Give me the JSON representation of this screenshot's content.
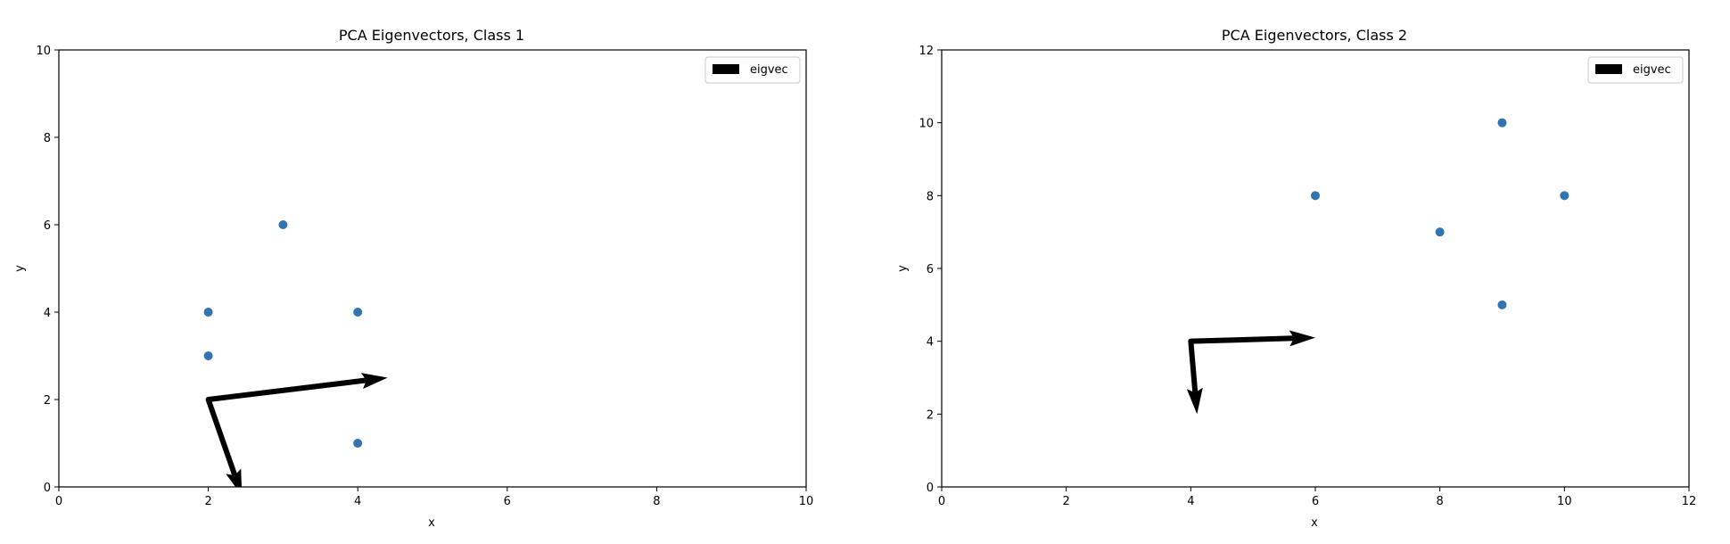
{
  "chart_data": [
    {
      "type": "scatter",
      "title": "PCA Eigenvectors, Class 1",
      "xlabel": "x",
      "ylabel": "y",
      "xlim": [
        0,
        10
      ],
      "ylim": [
        0,
        10
      ],
      "xticks": [
        0,
        2,
        4,
        6,
        8,
        10
      ],
      "yticks": [
        0,
        2,
        4,
        6,
        8,
        10
      ],
      "points": {
        "x": [
          2,
          3,
          2,
          4,
          4
        ],
        "y": [
          4,
          6,
          3,
          4,
          1
        ],
        "color": "#3274b0"
      },
      "eigenvectors": [
        {
          "from": [
            2,
            2
          ],
          "to": [
            4.4,
            2.5
          ]
        },
        {
          "from": [
            2,
            2
          ],
          "to": [
            2.45,
            -0.2
          ]
        }
      ],
      "legend": {
        "label": "eigvec",
        "location": "top-right"
      }
    },
    {
      "type": "scatter",
      "title": "PCA Eigenvectors, Class 2",
      "xlabel": "x",
      "ylabel": "y",
      "xlim": [
        0,
        12
      ],
      "ylim": [
        0,
        12
      ],
      "xticks": [
        0,
        2,
        4,
        6,
        8,
        10,
        12
      ],
      "yticks": [
        0,
        2,
        4,
        6,
        8,
        10,
        12
      ],
      "points": {
        "x": [
          6,
          9,
          8,
          10,
          9
        ],
        "y": [
          8,
          10,
          7,
          8,
          5
        ],
        "color": "#3274b0"
      },
      "eigenvectors": [
        {
          "from": [
            4,
            4
          ],
          "to": [
            6,
            4.1
          ]
        },
        {
          "from": [
            4,
            4
          ],
          "to": [
            4.1,
            2
          ]
        }
      ],
      "legend": {
        "label": "eigvec",
        "location": "top-right"
      }
    }
  ]
}
